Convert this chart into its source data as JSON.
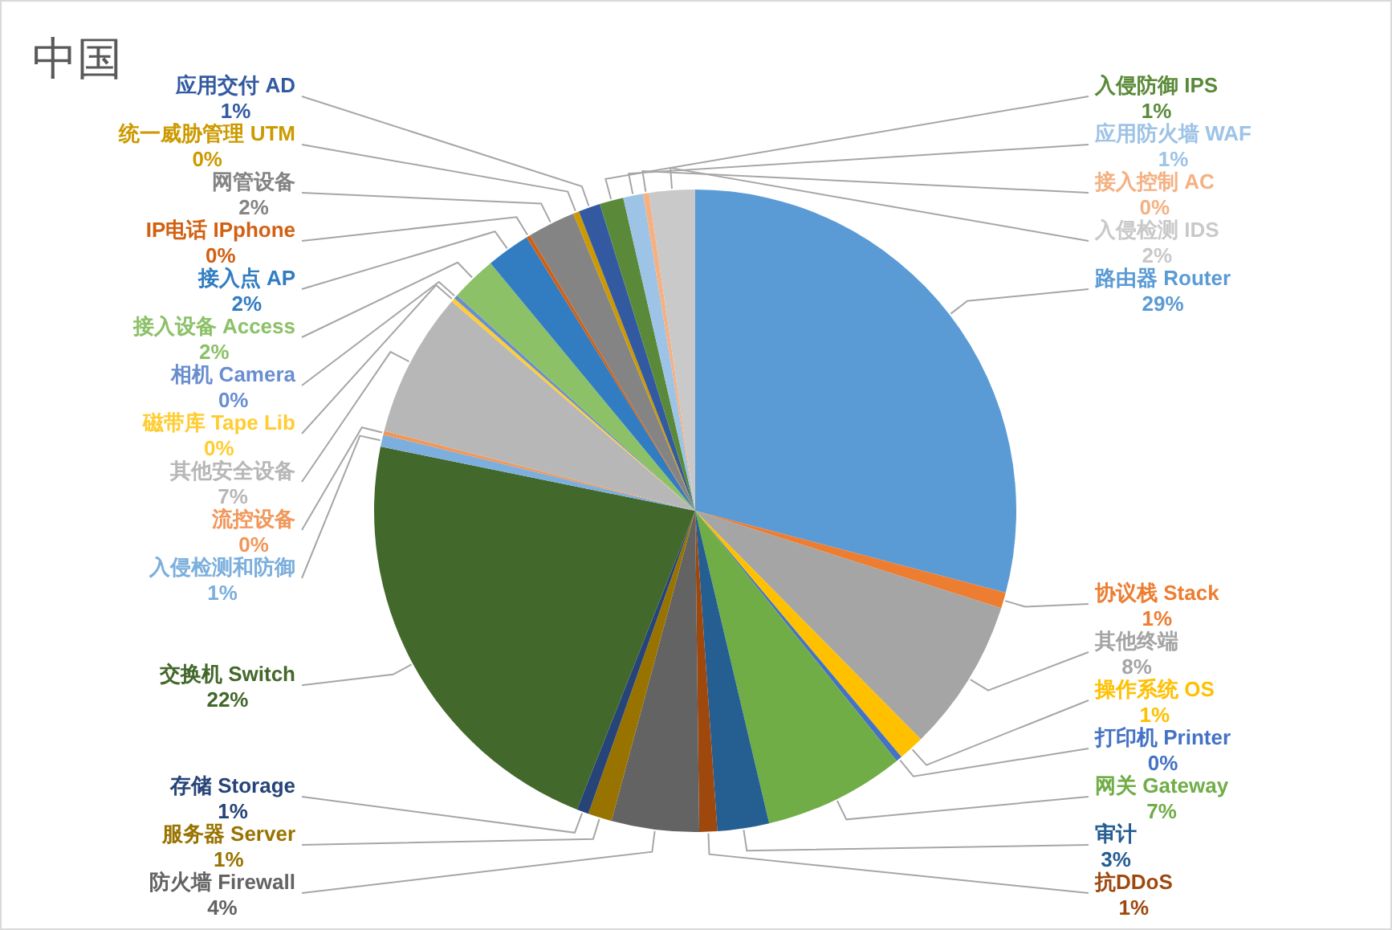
{
  "chart_data": {
    "type": "pie",
    "title": "中国",
    "categories": [
      "路由器 Router",
      "协议栈 Stack",
      "其他终端",
      "操作系统 OS",
      "打印机 Printer",
      "网关 Gateway",
      "审计",
      "抗DDoS",
      "防火墙 Firewall",
      "服务器 Server",
      "存储 Storage",
      "交换机 Switch",
      "入侵检测和防御",
      "流控设备",
      "其他安全设备",
      "磁带库 Tape Lib",
      "相机 Camera",
      "接入设备 Access",
      "接入点 AP",
      "IP电话 IPphone",
      "网管设备",
      "统一威胁管理 UTM",
      "应用交付 AD",
      "入侵防御 IPS",
      "应用防火墙 WAF",
      "接入控制 AC",
      "入侵检测 IDS"
    ],
    "values": [
      29.1,
      0.8,
      7.7,
      1.3,
      0.3,
      7.1,
      2.6,
      0.9,
      4.4,
      1.2,
      0.6,
      22.2,
      0.6,
      0.2,
      7.3,
      0.2,
      0.2,
      2.3,
      2.2,
      0.2,
      2.4,
      0.3,
      1.1,
      1.2,
      1.0,
      0.3,
      2.3
    ],
    "value_labels": [
      "29%",
      "1%",
      "8%",
      "1%",
      "0%",
      "7%",
      "3%",
      "1%",
      "4%",
      "1%",
      "1%",
      "22%",
      "1%",
      "0%",
      "7%",
      "0%",
      "0%",
      "2%",
      "2%",
      "0%",
      "2%",
      "0%",
      "1%",
      "1%",
      "1%",
      "0%",
      "2%"
    ],
    "colors": [
      "#5b9bd5",
      "#ed7d31",
      "#a5a5a5",
      "#ffc000",
      "#4472c4",
      "#70ad47",
      "#255e91",
      "#9e480e",
      "#636363",
      "#997300",
      "#264478",
      "#43682b",
      "#7cafdd",
      "#f1975a",
      "#b7b7b7",
      "#ffcd33",
      "#698ed0",
      "#8cc168",
      "#327dc2",
      "#d26012",
      "#848484",
      "#cc9a00",
      "#335aa1",
      "#5a8a39",
      "#9dc3e6",
      "#f4b183",
      "#c9c9c9"
    ]
  }
}
